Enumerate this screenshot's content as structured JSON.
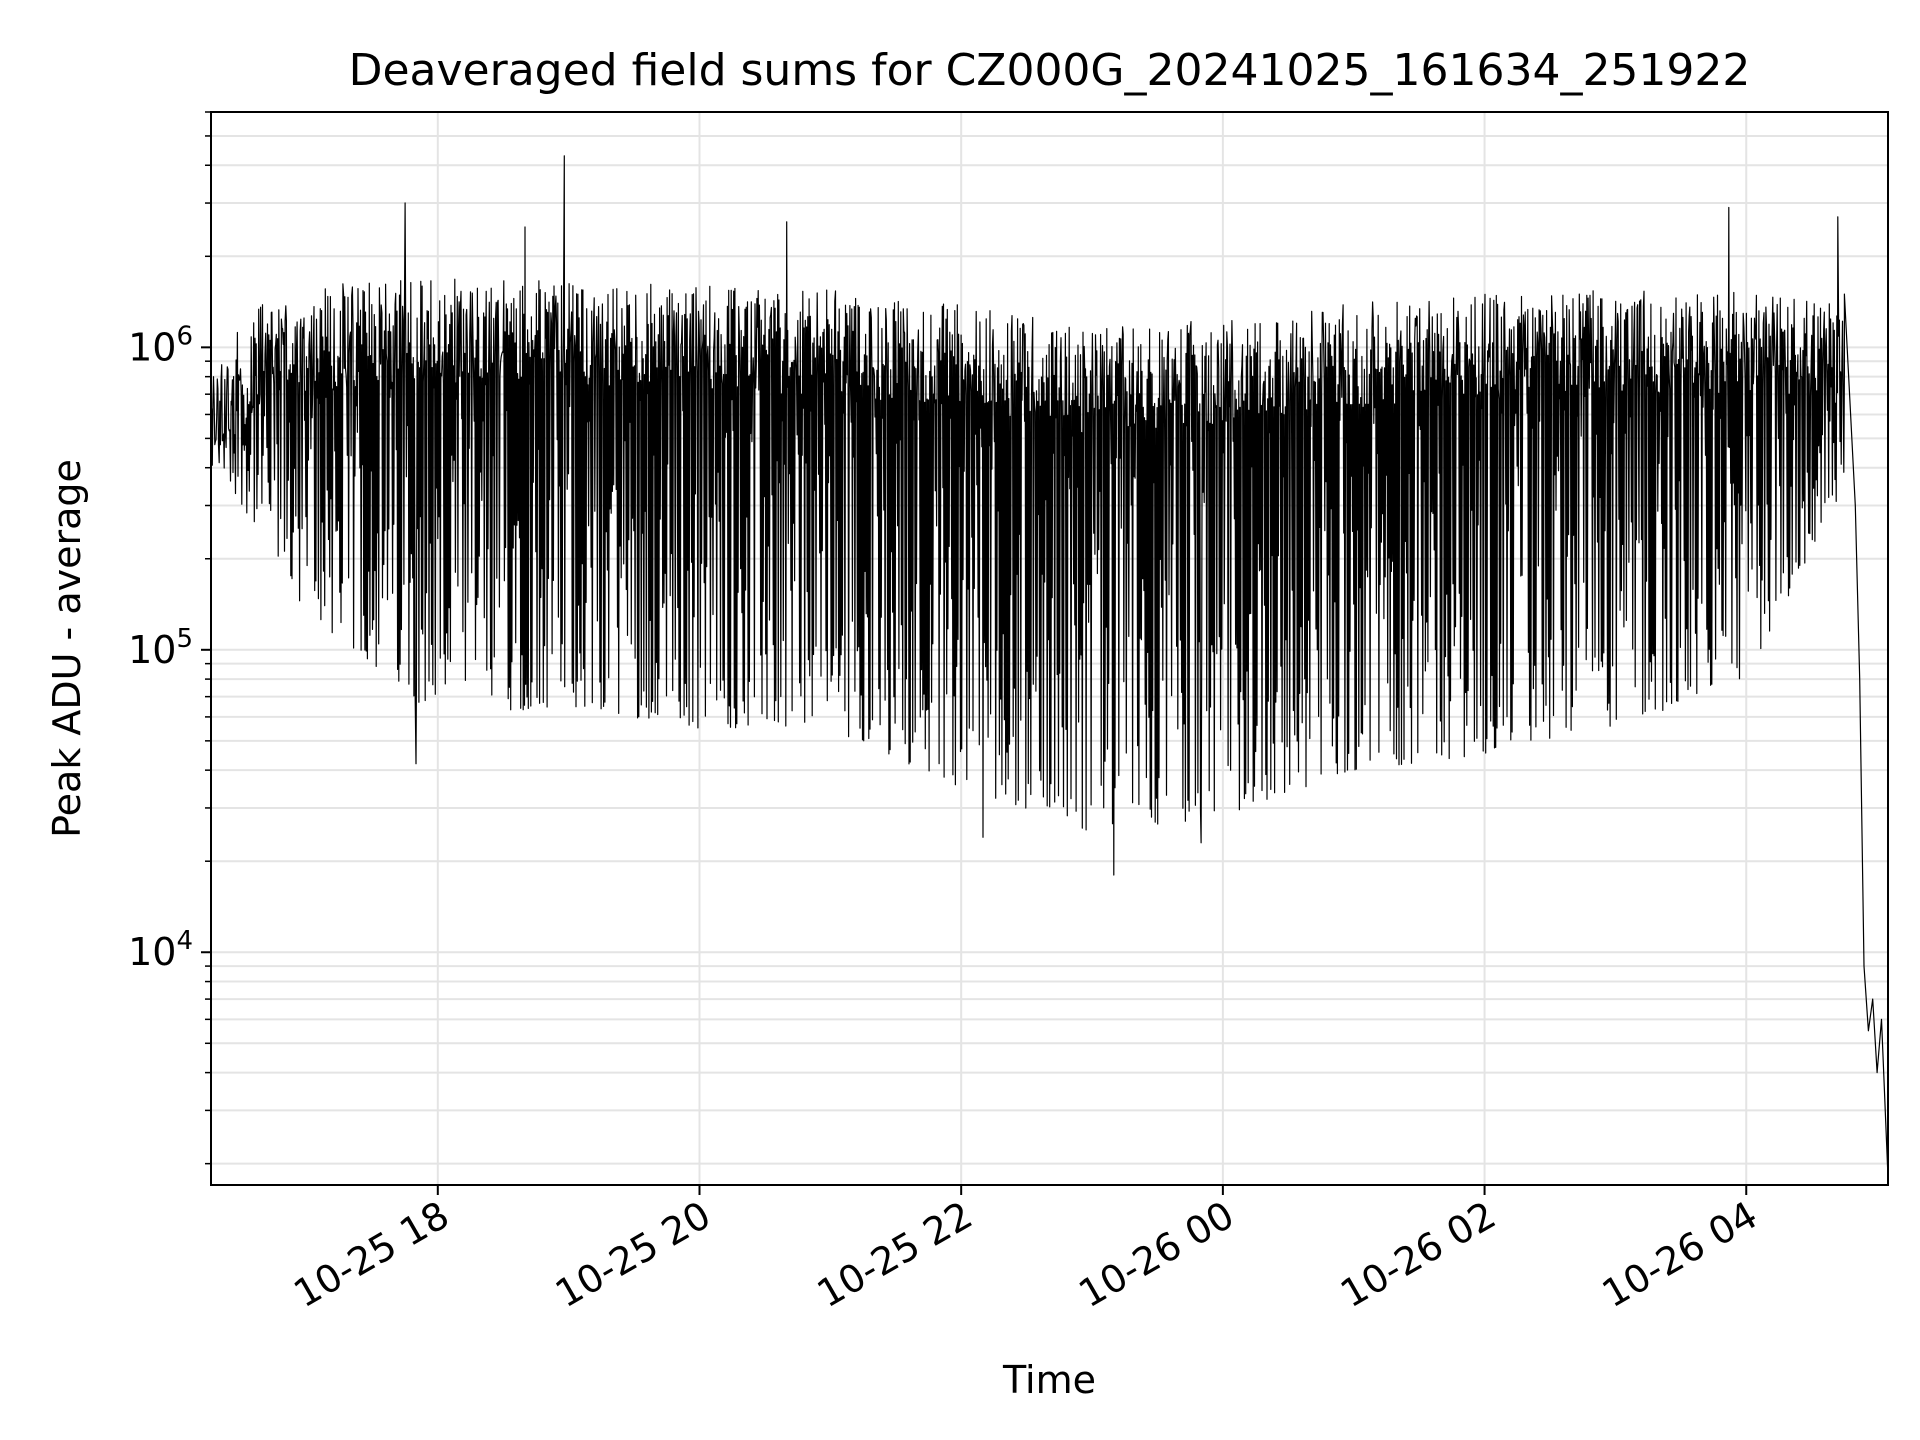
{
  "chart_data": {
    "type": "line",
    "title": "Deaveraged field sums for CZ000G_20241025_161634_251922",
    "xlabel": "Time",
    "ylabel": "Peak ADU - average",
    "y_scale": "log",
    "ylim": [
      1700,
      6000000
    ],
    "xlim": [
      "2024-10-25 16:16",
      "2024-10-26 05:05"
    ],
    "grid": true,
    "x_ticks": [
      "10-25 18",
      "10-25 20",
      "10-25 22",
      "10-26 00",
      "10-26 02",
      "10-26 04"
    ],
    "y_ticks": [
      {
        "base": "10",
        "exp": "4"
      },
      {
        "base": "10",
        "exp": "5"
      },
      {
        "base": "10",
        "exp": "6"
      }
    ],
    "line_color": "#000000",
    "series": [
      {
        "description": "rapidly oscillating signal; upper envelope / lower envelope values below (time, ADU)",
        "upper_envelope": [
          {
            "x": "2024-10-25 16:16",
            "y": 900000
          },
          {
            "x": "2024-10-25 16:40",
            "y": 1400000
          },
          {
            "x": "2024-10-25 17:00",
            "y": 1600000
          },
          {
            "x": "2024-10-25 18:00",
            "y": 1700000
          },
          {
            "x": "2024-10-25 19:00",
            "y": 1650000
          },
          {
            "x": "2024-10-25 20:00",
            "y": 1600000
          },
          {
            "x": "2024-10-25 21:00",
            "y": 1550000
          },
          {
            "x": "2024-10-25 22:00",
            "y": 1400000
          },
          {
            "x": "2024-10-25 23:00",
            "y": 1150000
          },
          {
            "x": "2024-10-26 00:00",
            "y": 1250000
          },
          {
            "x": "2024-10-26 01:00",
            "y": 1400000
          },
          {
            "x": "2024-10-26 02:00",
            "y": 1500000
          },
          {
            "x": "2024-10-26 03:00",
            "y": 1550000
          },
          {
            "x": "2024-10-26 04:00",
            "y": 1550000
          },
          {
            "x": "2024-10-26 04:45",
            "y": 1450000
          }
        ],
        "lower_envelope": [
          {
            "x": "2024-10-25 16:16",
            "y": 450000
          },
          {
            "x": "2024-10-25 17:00",
            "y": 130000
          },
          {
            "x": "2024-10-25 18:00",
            "y": 60000
          },
          {
            "x": "2024-10-25 19:00",
            "y": 65000
          },
          {
            "x": "2024-10-25 20:00",
            "y": 55000
          },
          {
            "x": "2024-10-25 21:00",
            "y": 55000
          },
          {
            "x": "2024-10-25 22:00",
            "y": 35000
          },
          {
            "x": "2024-10-25 23:00",
            "y": 25000
          },
          {
            "x": "2024-10-26 00:00",
            "y": 28000
          },
          {
            "x": "2024-10-26 01:00",
            "y": 40000
          },
          {
            "x": "2024-10-26 02:00",
            "y": 45000
          },
          {
            "x": "2024-10-26 03:00",
            "y": 55000
          },
          {
            "x": "2024-10-26 04:00",
            "y": 80000
          },
          {
            "x": "2024-10-26 04:45",
            "y": 350000
          }
        ],
        "spikes": [
          {
            "x": "2024-10-25 17:45",
            "y": 3000000
          },
          {
            "x": "2024-10-25 18:40",
            "y": 2500000
          },
          {
            "x": "2024-10-25 18:58",
            "y": 4300000
          },
          {
            "x": "2024-10-25 20:40",
            "y": 2600000
          },
          {
            "x": "2024-10-26 03:52",
            "y": 2900000
          },
          {
            "x": "2024-10-26 04:42",
            "y": 2700000
          }
        ],
        "dips": [
          {
            "x": "2024-10-25 17:50",
            "y": 42000
          },
          {
            "x": "2024-10-25 22:10",
            "y": 24000
          },
          {
            "x": "2024-10-25 23:10",
            "y": 18000
          },
          {
            "x": "2024-10-25 23:50",
            "y": 23000
          }
        ],
        "tail": [
          {
            "x": "2024-10-26 04:45",
            "y": 1500000
          },
          {
            "x": "2024-10-26 04:50",
            "y": 300000
          },
          {
            "x": "2024-10-26 04:52",
            "y": 80000
          },
          {
            "x": "2024-10-26 04:54",
            "y": 9000
          },
          {
            "x": "2024-10-26 04:56",
            "y": 5500
          },
          {
            "x": "2024-10-26 04:58",
            "y": 7000
          },
          {
            "x": "2024-10-26 05:00",
            "y": 4000
          },
          {
            "x": "2024-10-26 05:02",
            "y": 6000
          },
          {
            "x": "2024-10-26 05:05",
            "y": 1800
          }
        ]
      }
    ]
  }
}
